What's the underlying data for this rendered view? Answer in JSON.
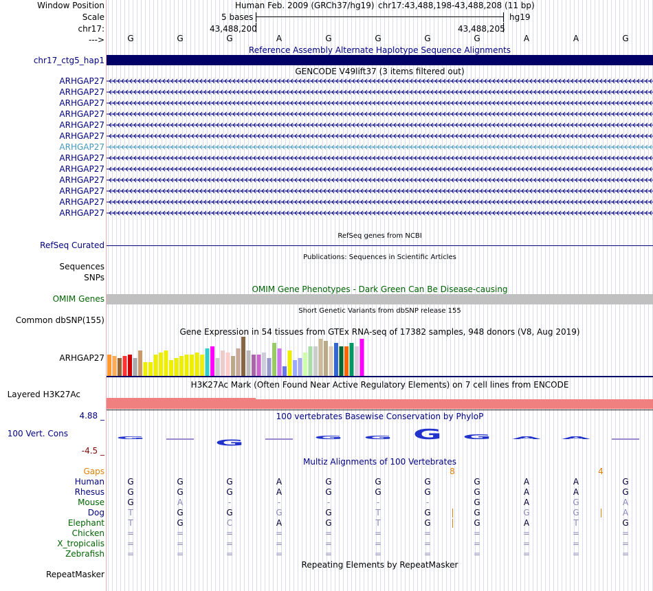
{
  "labels": {
    "window_position": "Window Position",
    "scale": "Scale",
    "chrom": "chr17:",
    "arrow": "--->",
    "hap": "chr17_ctg5_hap1",
    "refseq": "RefSeq Curated",
    "sequences": "Sequences",
    "snps": "SNPs",
    "omim": "OMIM Genes",
    "dbsnp": "Common dbSNP(155)",
    "gtex_gene": "ARHGAP27",
    "h3k27": "Layered H3K27Ac",
    "cons": "100 Vert. Cons",
    "repeatmasker": "RepeatMasker"
  },
  "header": {
    "assembly": "Human Feb. 2009 (GRCh37/hg19)",
    "position": "chr17:43,488,198-43,488,208 (11 bp)",
    "scale_text": "5 bases",
    "scale_db": "hg19",
    "coord_left": "43,488,200",
    "coord_right": "43,488,205"
  },
  "bases": [
    "G",
    "G",
    "G",
    "A",
    "G",
    "G",
    "G",
    "G",
    "A",
    "A",
    "G"
  ],
  "tracks": {
    "alt_haplotype": "Reference Assembly Alternate Haplotype Sequence Alignments",
    "gencode": "GENCODE V49lift37 (3 items filtered out)",
    "refseq_title": "RefSeq genes from NCBI",
    "publications": "Publications: Sequences in Scientific Articles",
    "omim_title": "OMIM Gene Phenotypes - Dark Green Can Be Disease-causing",
    "dbsnp_title": "Short Genetic Variants from dbSNP release 155",
    "gtex_title": "Gene Expression in 54 tissues from GTEx RNA-seq of 17382 samples, 948 donors (V8, Aug 2019)",
    "h3k27_title": "H3K27Ac Mark (Often Found Near Active Regulatory Elements) on 7 cell lines from ENCODE",
    "phylop_title": "100 vertebrates Basewise Conservation by PhyloP",
    "phylop_max": "4.88 _",
    "phylop_min": "-4.5 _",
    "multiz_title": "Multiz Alignments of 100 Vertebrates",
    "repeat_title": "Repeating Elements by RepeatMasker"
  },
  "gencode_genes": [
    "ARHGAP27",
    "ARHGAP27",
    "ARHGAP27",
    "ARHGAP27",
    "ARHGAP27",
    "ARHGAP27",
    "ARHGAP27",
    "ARHGAP27",
    "ARHGAP27",
    "ARHGAP27",
    "ARHGAP27",
    "ARHGAP27",
    "ARHGAP27"
  ],
  "highlighted_gene_index": 6,
  "gtex_bars": [
    {
      "h": 0.55,
      "c": "#ff9933"
    },
    {
      "h": 0.5,
      "c": "#ffaa55"
    },
    {
      "h": 0.45,
      "c": "#996633"
    },
    {
      "h": 0.5,
      "c": "#ff3333"
    },
    {
      "h": 0.55,
      "c": "#cc0000"
    },
    {
      "h": 0.45,
      "c": "#aaaaaa"
    },
    {
      "h": 0.65,
      "c": "#cc9966"
    },
    {
      "h": 0.35,
      "c": "#eeee00"
    },
    {
      "h": 0.35,
      "c": "#eeee00"
    },
    {
      "h": 0.55,
      "c": "#eeee00"
    },
    {
      "h": 0.6,
      "c": "#eeee00"
    },
    {
      "h": 0.65,
      "c": "#eeee00"
    },
    {
      "h": 0.4,
      "c": "#eeee00"
    },
    {
      "h": 0.45,
      "c": "#eeee00"
    },
    {
      "h": 0.5,
      "c": "#eeee00"
    },
    {
      "h": 0.55,
      "c": "#eeee00"
    },
    {
      "h": 0.55,
      "c": "#eeee00"
    },
    {
      "h": 0.6,
      "c": "#eeee00"
    },
    {
      "h": 0.55,
      "c": "#eeee00"
    },
    {
      "h": 0.7,
      "c": "#33cccc"
    },
    {
      "h": 0.75,
      "c": "#ff00ff"
    },
    {
      "h": 0.45,
      "c": "#cccccc"
    },
    {
      "h": 0.65,
      "c": "#eecccc"
    },
    {
      "h": 0.6,
      "c": "#ffcccc"
    },
    {
      "h": 0.5,
      "c": "#bbaa88"
    },
    {
      "h": 0.7,
      "c": "#ccaa99"
    },
    {
      "h": 1.0,
      "c": "#886644"
    },
    {
      "h": 0.65,
      "c": "#bbbbbb"
    },
    {
      "h": 0.55,
      "c": "#aa66aa"
    },
    {
      "h": 0.55,
      "c": "#cc66cc"
    },
    {
      "h": 0.6,
      "c": "#ccccdd"
    },
    {
      "h": 0.45,
      "c": "#9999cc"
    },
    {
      "h": 0.85,
      "c": "#99cc66"
    },
    {
      "h": 0.7,
      "c": "#cc77ee"
    },
    {
      "h": 0.25,
      "c": "#6677ee"
    },
    {
      "h": 0.65,
      "c": "#eeee00"
    },
    {
      "h": 0.4,
      "c": "#99aaff"
    },
    {
      "h": 0.45,
      "c": "#aaaaee"
    },
    {
      "h": 0.6,
      "c": "#ccffaa"
    },
    {
      "h": 0.75,
      "c": "#aaddaa"
    },
    {
      "h": 0.75,
      "c": "#cccccc"
    },
    {
      "h": 0.95,
      "c": "#ccbb99"
    },
    {
      "h": 0.9,
      "c": "#bbaa88"
    },
    {
      "h": 0.75,
      "c": "#ddccbb"
    },
    {
      "h": 0.85,
      "c": "#3366cc"
    },
    {
      "h": 0.75,
      "c": "#006633"
    },
    {
      "h": 0.75,
      "c": "#ff6600"
    },
    {
      "h": 0.85,
      "c": "#009966"
    },
    {
      "h": 0.75,
      "c": "#ddccdd"
    },
    {
      "h": 0.95,
      "c": "#ff00ff"
    }
  ],
  "phylop": [
    0.15,
    0.0,
    -0.6,
    0.0,
    0.35,
    0.35,
    0.95,
    0.45,
    0.05,
    0.05,
    0.0
  ],
  "multiz": {
    "gaps_label": "Gaps",
    "gap_marks": [
      {
        "after": 6,
        "text": "8"
      },
      {
        "after": 9,
        "text": "4"
      }
    ],
    "species": [
      {
        "name": "Human",
        "color": "#000080",
        "seq": [
          "G",
          "G",
          "G",
          "A",
          "G",
          "G",
          "G",
          "G",
          "A",
          "A",
          "G"
        ],
        "shade": [
          0,
          0,
          0,
          0,
          0,
          0,
          0,
          0,
          0,
          0,
          0
        ]
      },
      {
        "name": "Rhesus",
        "color": "#000080",
        "seq": [
          "G",
          "G",
          "G",
          "A",
          "G",
          "G",
          "G",
          "G",
          "A",
          "A",
          "G"
        ],
        "shade": [
          0,
          0,
          0,
          0,
          0,
          0,
          0,
          0,
          0,
          0,
          0
        ]
      },
      {
        "name": "Mouse",
        "color": "#006400",
        "seq": [
          "G",
          "A",
          "-",
          "-",
          "-",
          "-",
          "-",
          "G",
          "A",
          "G",
          "A"
        ],
        "shade": [
          0,
          1,
          1,
          1,
          1,
          1,
          1,
          0,
          0,
          1,
          1
        ]
      },
      {
        "name": "Dog",
        "color": "#000080",
        "seq": [
          "T",
          "G",
          "G",
          "G",
          "G",
          "T",
          "G",
          "G",
          "G",
          "G",
          "A"
        ],
        "shade": [
          1,
          0,
          0,
          1,
          0,
          1,
          0,
          0,
          1,
          1,
          1
        ]
      },
      {
        "name": "Elephant",
        "color": "#006400",
        "seq": [
          "T",
          "G",
          "C",
          "A",
          "G",
          "T",
          "G",
          "G",
          "A",
          "T",
          "G"
        ],
        "shade": [
          1,
          0,
          1,
          0,
          0,
          1,
          0,
          0,
          0,
          1,
          0
        ]
      },
      {
        "name": "Chicken",
        "color": "#006400",
        "seq": [
          "=",
          "=",
          "=",
          "=",
          "=",
          "=",
          "=",
          "=",
          "=",
          "=",
          "="
        ],
        "shade": [
          1,
          1,
          1,
          1,
          1,
          1,
          1,
          1,
          1,
          1,
          1
        ]
      },
      {
        "name": "X_tropicalis",
        "color": "#006400",
        "seq": [
          "=",
          "=",
          "=",
          "=",
          "=",
          "=",
          "=",
          "=",
          "=",
          "=",
          "="
        ],
        "shade": [
          1,
          1,
          1,
          1,
          1,
          1,
          1,
          1,
          1,
          1,
          1
        ]
      },
      {
        "name": "Zebrafish",
        "color": "#006400",
        "seq": [
          "=",
          "=",
          "=",
          "=",
          "=",
          "=",
          "=",
          "=",
          "=",
          "=",
          "="
        ],
        "shade": [
          1,
          1,
          1,
          1,
          1,
          1,
          1,
          1,
          1,
          1,
          1
        ]
      }
    ],
    "insert_marks": [
      {
        "row": 3,
        "after": 6
      },
      {
        "row": 3,
        "after": 9
      },
      {
        "row": 4,
        "after": 6
      }
    ]
  },
  "colors": {
    "navy_bar": "#000066",
    "gene_navy": "#000080",
    "highlight_gene": "#4499bb",
    "omim_gray": "#c0c0c0",
    "h3k27": "#f08080",
    "gaps": "#e08000",
    "grid": "#dcdcf0"
  }
}
